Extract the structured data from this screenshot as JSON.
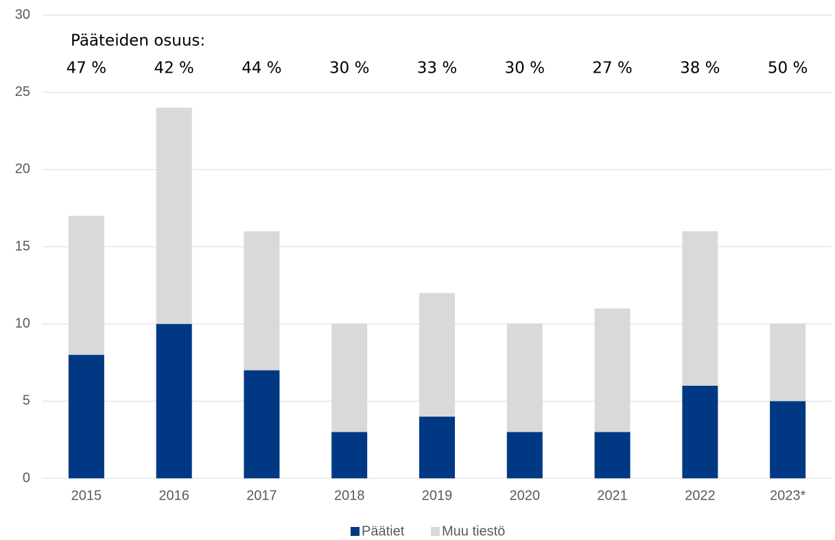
{
  "chart_data": {
    "type": "stacked_bar",
    "categories": [
      "2015",
      "2016",
      "2017",
      "2018",
      "2019",
      "2020",
      "2021",
      "2022",
      "2023*"
    ],
    "series": [
      {
        "name": "Päätiet",
        "color": "#003883",
        "values": [
          8,
          10,
          7,
          3,
          4,
          3,
          3,
          6,
          5
        ]
      },
      {
        "name": "Muu tiestö",
        "color": "#d9d9d9",
        "values": [
          9,
          14,
          9,
          7,
          8,
          7,
          8,
          10,
          5
        ]
      }
    ],
    "ylim": [
      0,
      30
    ],
    "yticks": [
      0,
      5,
      10,
      15,
      20,
      25,
      30
    ],
    "grid": true,
    "legend": "bottom",
    "annotation_title": "Pääteiden osuus:",
    "annotations": [
      "47 %",
      "42 %",
      "44 %",
      "30 %",
      "33 %",
      "30 %",
      "27 %",
      "38 %",
      "50 %"
    ]
  }
}
